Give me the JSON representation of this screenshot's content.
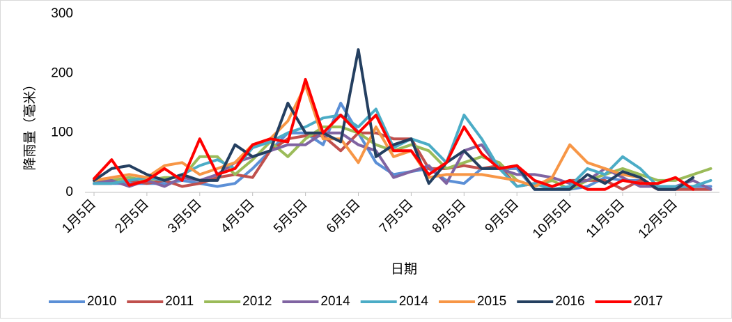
{
  "chart_data": {
    "type": "line",
    "y_label": "降雨量（毫米）",
    "x_label": "日期",
    "categories": [
      "1月5日",
      null,
      null,
      "2月5日",
      null,
      null,
      "3月5日",
      null,
      null,
      "4月5日",
      null,
      null,
      "5月5日",
      null,
      null,
      "6月5日",
      null,
      null,
      "7月5日",
      null,
      null,
      "8月5日",
      null,
      null,
      "9月5日",
      null,
      null,
      "10月5日",
      null,
      null,
      "11月5日",
      null,
      null,
      "12月5日",
      null,
      null
    ],
    "ylim": [
      0,
      300
    ],
    "yticks": [
      0,
      100,
      200,
      300
    ],
    "grid": false,
    "legend": "bottom",
    "series": [
      {
        "name": "2010",
        "color": "#5b8fd6",
        "values": [
          15,
          15,
          15,
          15,
          15,
          20,
          15,
          10,
          15,
          40,
          70,
          100,
          100,
          80,
          150,
          100,
          50,
          30,
          35,
          40,
          20,
          15,
          40,
          40,
          40,
          5,
          5,
          5,
          10,
          25,
          20,
          20,
          5,
          5,
          10,
          10
        ]
      },
      {
        "name": "2011",
        "color": "#c0504d",
        "values": [
          15,
          15,
          20,
          15,
          20,
          10,
          15,
          25,
          30,
          25,
          70,
          90,
          95,
          95,
          70,
          100,
          100,
          90,
          90,
          40,
          40,
          45,
          40,
          45,
          10,
          15,
          10,
          20,
          20,
          20,
          5,
          20,
          5,
          5,
          5,
          5
        ]
      },
      {
        "name": "2012",
        "color": "#9bbb59",
        "values": [
          20,
          20,
          25,
          20,
          25,
          25,
          60,
          60,
          30,
          55,
          85,
          60,
          90,
          110,
          110,
          100,
          80,
          70,
          80,
          70,
          40,
          50,
          60,
          50,
          20,
          10,
          20,
          5,
          20,
          30,
          40,
          30,
          20,
          20,
          30,
          40
        ]
      },
      {
        "name": "2014",
        "color": "#8064a2",
        "values": [
          15,
          20,
          10,
          20,
          10,
          25,
          20,
          30,
          50,
          60,
          70,
          80,
          80,
          100,
          100,
          80,
          70,
          25,
          35,
          45,
          15,
          70,
          80,
          40,
          30,
          30,
          25,
          15,
          20,
          40,
          25,
          10,
          10,
          10,
          20,
          5
        ]
      },
      {
        "name": "2014",
        "color": "#4bacc6",
        "values": [
          15,
          15,
          20,
          25,
          20,
          30,
          45,
          55,
          40,
          75,
          85,
          100,
          110,
          125,
          130,
          110,
          140,
          75,
          90,
          80,
          50,
          130,
          90,
          40,
          10,
          15,
          5,
          10,
          40,
          30,
          60,
          40,
          10,
          10,
          10,
          20
        ]
      },
      {
        "name": "2015",
        "color": "#f79646",
        "values": [
          20,
          25,
          30,
          25,
          45,
          50,
          30,
          40,
          50,
          80,
          90,
          120,
          180,
          90,
          90,
          50,
          110,
          60,
          70,
          25,
          30,
          30,
          30,
          25,
          20,
          10,
          25,
          80,
          50,
          40,
          30,
          25,
          null,
          null,
          null,
          null
        ]
      },
      {
        "name": "2016",
        "color": "#243f60",
        "values": [
          20,
          40,
          45,
          30,
          20,
          30,
          20,
          20,
          80,
          60,
          70,
          150,
          100,
          100,
          85,
          240,
          60,
          80,
          90,
          15,
          50,
          70,
          40,
          40,
          45,
          5,
          5,
          5,
          30,
          15,
          35,
          25,
          5,
          5,
          25,
          null
        ]
      },
      {
        "name": "2017",
        "color": "#ff0000",
        "values": [
          23,
          55,
          12,
          20,
          40,
          20,
          90,
          30,
          40,
          80,
          90,
          85,
          190,
          100,
          130,
          100,
          130,
          70,
          70,
          30,
          50,
          110,
          65,
          40,
          45,
          20,
          10,
          20,
          5,
          5,
          20,
          15,
          15,
          25,
          5,
          null
        ]
      }
    ]
  }
}
